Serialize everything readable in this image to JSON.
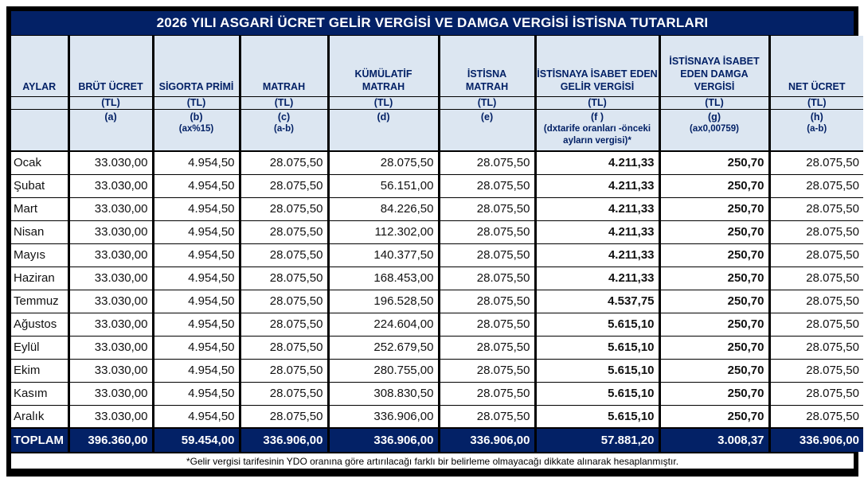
{
  "title": "2026 YILI ASGARİ ÜCRET GELİR VERGİSİ VE DAMGA VERGİSİ İSTİSNA TUTARLARI",
  "colors": {
    "navy": "#032166",
    "header_bg": "#dce6f1",
    "red_value": "#ff0000",
    "border": "#000000",
    "white": "#ffffff"
  },
  "columns": [
    {
      "key": "month",
      "name": "AYLAR",
      "unit": "",
      "code": "",
      "formula": "",
      "red": false
    },
    {
      "key": "brut",
      "name": "BRÜT ÜCRET",
      "unit": "(TL)",
      "code": "(a)",
      "formula": "",
      "red": false
    },
    {
      "key": "sigorta",
      "name": "SİGORTA  PRİMİ",
      "unit": "(TL)",
      "code": "(b)",
      "formula": "(ax%15)",
      "red": false
    },
    {
      "key": "matrah",
      "name": "MATRAH",
      "unit": "(TL)",
      "code": "(c)",
      "formula": "(a-b)",
      "red": false
    },
    {
      "key": "kumulatif",
      "name": "KÜMÜLATİF\nMATRAH",
      "unit": "(TL)",
      "code": "(d)",
      "formula": "",
      "red": false
    },
    {
      "key": "istisna",
      "name": "İSTİSNA\nMATRAH",
      "unit": "(TL)",
      "code": "(e)",
      "formula": "",
      "red": false
    },
    {
      "key": "gelir",
      "name": "İSTİSNAYA İSABET EDEN\nGELİR VERGİSİ",
      "unit": "(TL)",
      "code": "(f )",
      "formula": "(dxtarife oranları -önceki ayların vergisi)*",
      "red": true
    },
    {
      "key": "damga",
      "name": "İSTİSNAYA İSABET\nEDEN DAMGA\nVERGİSİ",
      "unit": "(TL)",
      "code": "(g)",
      "formula": "(ax0,00759)",
      "red": true
    },
    {
      "key": "net",
      "name": "NET ÜCRET",
      "unit": "(TL)",
      "code": "(h)",
      "formula": "(a-b)",
      "red": false
    }
  ],
  "rows": [
    {
      "cells": [
        "Ocak",
        "33.030,00",
        "4.954,50",
        "28.075,50",
        "28.075,50",
        "28.075,50",
        "4.211,33",
        "250,70",
        "28.075,50"
      ]
    },
    {
      "cells": [
        "Şubat",
        "33.030,00",
        "4.954,50",
        "28.075,50",
        "56.151,00",
        "28.075,50",
        "4.211,33",
        "250,70",
        "28.075,50"
      ]
    },
    {
      "cells": [
        "Mart",
        "33.030,00",
        "4.954,50",
        "28.075,50",
        "84.226,50",
        "28.075,50",
        "4.211,33",
        "250,70",
        "28.075,50"
      ]
    },
    {
      "cells": [
        "Nisan",
        "33.030,00",
        "4.954,50",
        "28.075,50",
        "112.302,00",
        "28.075,50",
        "4.211,33",
        "250,70",
        "28.075,50"
      ]
    },
    {
      "cells": [
        "Mayıs",
        "33.030,00",
        "4.954,50",
        "28.075,50",
        "140.377,50",
        "28.075,50",
        "4.211,33",
        "250,70",
        "28.075,50"
      ]
    },
    {
      "cells": [
        "Haziran",
        "33.030,00",
        "4.954,50",
        "28.075,50",
        "168.453,00",
        "28.075,50",
        "4.211,33",
        "250,70",
        "28.075,50"
      ]
    },
    {
      "cells": [
        "Temmuz",
        "33.030,00",
        "4.954,50",
        "28.075,50",
        "196.528,50",
        "28.075,50",
        "4.537,75",
        "250,70",
        "28.075,50"
      ]
    },
    {
      "cells": [
        "Ağustos",
        "33.030,00",
        "4.954,50",
        "28.075,50",
        "224.604,00",
        "28.075,50",
        "5.615,10",
        "250,70",
        "28.075,50"
      ]
    },
    {
      "cells": [
        "Eylül",
        "33.030,00",
        "4.954,50",
        "28.075,50",
        "252.679,50",
        "28.075,50",
        "5.615,10",
        "250,70",
        "28.075,50"
      ]
    },
    {
      "cells": [
        "Ekim",
        "33.030,00",
        "4.954,50",
        "28.075,50",
        "280.755,00",
        "28.075,50",
        "5.615,10",
        "250,70",
        "28.075,50"
      ]
    },
    {
      "cells": [
        "Kasım",
        "33.030,00",
        "4.954,50",
        "28.075,50",
        "308.830,50",
        "28.075,50",
        "5.615,10",
        "250,70",
        "28.075,50"
      ]
    },
    {
      "cells": [
        "Aralık",
        "33.030,00",
        "4.954,50",
        "28.075,50",
        "336.906,00",
        "28.075,50",
        "5.615,10",
        "250,70",
        "28.075,50"
      ]
    }
  ],
  "total": {
    "cells": [
      "TOPLAM",
      "396.360,00",
      "59.454,00",
      "336.906,00",
      "336.906,00",
      "336.906,00",
      "57.881,20",
      "3.008,37",
      "336.906,00"
    ]
  },
  "footnote": "*Gelir vergisi tarifesinin YDO oranına göre artırılacağı farklı bir belirleme olmayacağı dikkate alınarak hesaplanmıştır."
}
